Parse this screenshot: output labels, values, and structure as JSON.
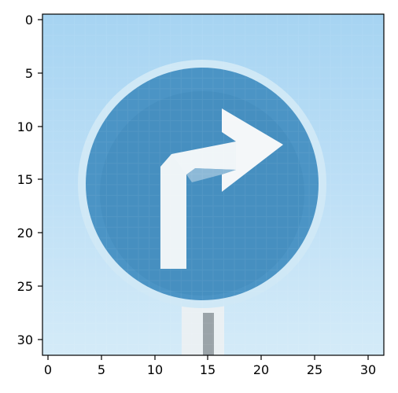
{
  "figure": {
    "x_ticks": [
      "0",
      "5",
      "10",
      "15",
      "20",
      "25",
      "30"
    ],
    "y_ticks": [
      "0",
      "5",
      "10",
      "15",
      "20",
      "25",
      "30"
    ]
  },
  "image": {
    "content": "blue circular traffic sign with white arrow pointing right",
    "colors": {
      "sky_light": "#d4ebf8",
      "sky_mid": "#a6d4f2",
      "sign_blue": "#4b94c5",
      "sign_blue_dark": "#3f86b8",
      "sign_rim": "#cfe8f6",
      "arrow": "#f2f6f8",
      "pole_light": "#eaf0f3",
      "pole_dark": "#9aa3a8"
    }
  }
}
